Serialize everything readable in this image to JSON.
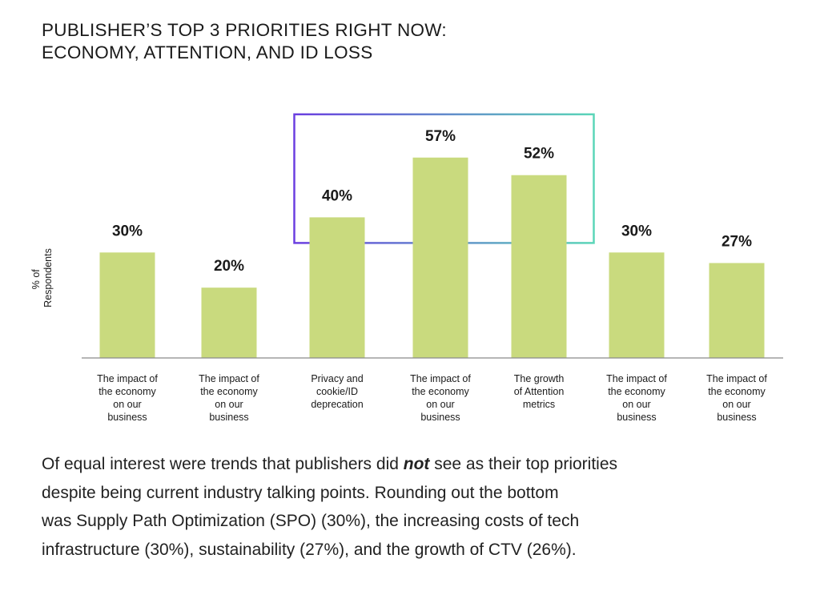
{
  "title": {
    "line1": "PUBLISHER’S TOP 3 PRIORITIES RIGHT NOW:",
    "line2": "ECONOMY, ATTENTION, AND ID LOSS"
  },
  "chart_data": {
    "type": "bar",
    "ylabel": "% of Respondents",
    "ylabel_lines": [
      "% of",
      "Respondents"
    ],
    "ylim": [
      0,
      65
    ],
    "grid": false,
    "bar_color": "#c9da7e",
    "highlight_gradient": [
      "#6b3fe0",
      "#5bd6b8"
    ],
    "highlight_categories": [
      2,
      3,
      4
    ],
    "categories": [
      [
        "The impact of",
        "the economy",
        "on our",
        "business"
      ],
      [
        "The impact of",
        "the economy",
        "on our",
        "business"
      ],
      [
        "Privacy and",
        "cookie/ID",
        "deprecation"
      ],
      [
        "The impact of",
        "the economy",
        "on our",
        "business"
      ],
      [
        "The growth",
        "of Attention",
        "metrics"
      ],
      [
        "The impact of",
        "the economy",
        "on our",
        "business"
      ],
      [
        "The impact of",
        "the economy",
        "on our",
        "business"
      ]
    ],
    "values": [
      30,
      20,
      40,
      57,
      52,
      30,
      27
    ],
    "value_labels": [
      "30%",
      "20%",
      "40%",
      "57%",
      "52%",
      "30%",
      "27%"
    ]
  },
  "body": {
    "line1_pre": "Of equal interest were trends that publishers did ",
    "line1_emph": "not",
    "line1_post": " see as their top priorities",
    "line2": "despite being current industry talking points. Rounding out the bottom",
    "line3": "was Supply Path Optimization (SPO) (30%), the increasing costs of tech",
    "line4": "infrastructure (30%), sustainability (27%), and the growth of CTV (26%)."
  }
}
